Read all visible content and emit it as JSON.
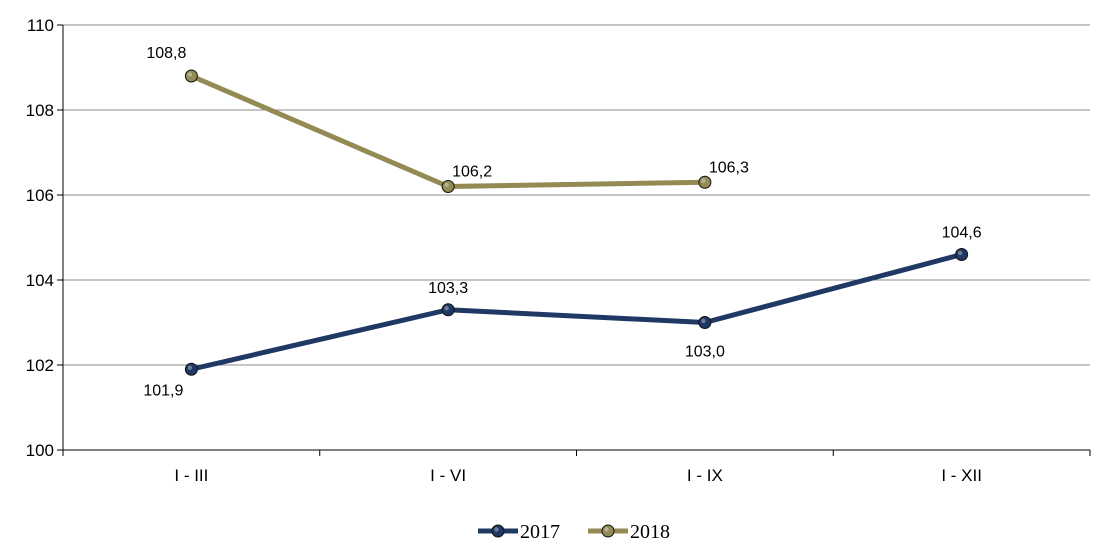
{
  "chart_data": {
    "type": "line",
    "categories": [
      "I - III",
      "I - VI",
      "I - IX",
      "I - XII"
    ],
    "ylim": [
      100,
      110
    ],
    "yticks": [
      100,
      102,
      104,
      106,
      108,
      110
    ],
    "ytick_labels": [
      "100",
      "102",
      "104",
      "106",
      "108",
      "110"
    ],
    "grid": true,
    "legend_position": "bottom-center",
    "series": [
      {
        "name": "2017",
        "color": "#1f3864",
        "values": [
          101.9,
          103.3,
          103.0,
          104.6
        ],
        "labels": [
          "101,9",
          "103,3",
          "103,0",
          "104,6"
        ],
        "label_positions": [
          "below-left",
          "above",
          "below",
          "above"
        ]
      },
      {
        "name": "2018",
        "color": "#948a54",
        "values": [
          108.8,
          106.2,
          106.3,
          null
        ],
        "labels": [
          "108,8",
          "106,2",
          "106,3",
          null
        ],
        "label_positions": [
          "above-left",
          "above-right",
          "above-right",
          null
        ]
      }
    ]
  }
}
